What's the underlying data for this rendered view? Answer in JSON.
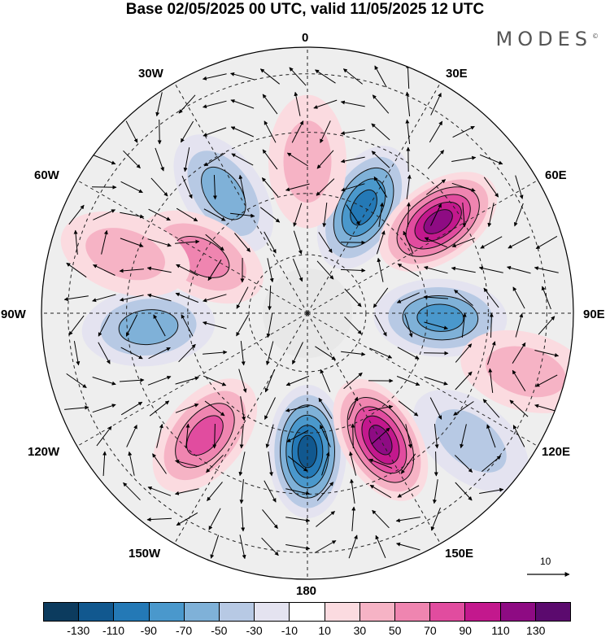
{
  "title": "Base 02/05/2025 00 UTC, valid 11/05/2025 12 UTC",
  "brand": "MODES",
  "brand_mark": "©",
  "longitude_labels": {
    "l0": "0",
    "l30e": "30E",
    "l60e": "60E",
    "l90e": "90E",
    "l120e": "120E",
    "l150e": "150E",
    "l180": "180",
    "l150w": "150W",
    "l120w": "120W",
    "l90w": "90W",
    "l60w": "60W",
    "l30w": "30W"
  },
  "vector_reference": "10",
  "colorbar": {
    "colors": [
      "#0c3b5e",
      "#11588f",
      "#2479b6",
      "#4a98cc",
      "#7fb1d8",
      "#b7c9e4",
      "#e4e3f0",
      "#ffffff",
      "#fbdbe0",
      "#f6b3c5",
      "#ef85b0",
      "#e14c9f",
      "#c3188d",
      "#8e0b83",
      "#5b0a6e"
    ],
    "labels": [
      "-130",
      "-110",
      "-90",
      "-70",
      "-50",
      "-30",
      "-10",
      "10",
      "30",
      "50",
      "70",
      "90",
      "110",
      "130"
    ]
  },
  "map": {
    "projection": "polar stereographic, south pole centred",
    "field": "anomaly (shaded) with wind vectors",
    "anomalies": [
      {
        "name": "blue-0-30e",
        "lon": 28,
        "colat": 0.45,
        "value": -110
      },
      {
        "name": "blue-30w",
        "lon": -35,
        "colat": 0.55,
        "value": -60
      },
      {
        "name": "blue-90e",
        "lon": 92,
        "colat": 0.5,
        "value": -90
      },
      {
        "name": "blue-120e",
        "lon": 128,
        "colat": 0.78,
        "value": -50
      },
      {
        "name": "blue-180",
        "lon": 180,
        "colat": 0.52,
        "value": -130
      },
      {
        "name": "blue-90w",
        "lon": -95,
        "colat": 0.6,
        "value": -70
      },
      {
        "name": "pink-0",
        "lon": 0,
        "colat": 0.57,
        "value": 40
      },
      {
        "name": "pink-60w",
        "lon": -62,
        "colat": 0.45,
        "value": 70
      },
      {
        "name": "pink-75w",
        "lon": -72,
        "colat": 0.72,
        "value": 40
      },
      {
        "name": "pink-55e",
        "lon": 55,
        "colat": 0.6,
        "value": 120
      },
      {
        "name": "pink-105e",
        "lon": 105,
        "colat": 0.85,
        "value": 40
      },
      {
        "name": "pink-150e",
        "lon": 150,
        "colat": 0.55,
        "value": 125
      },
      {
        "name": "pink-140w",
        "lon": -140,
        "colat": 0.6,
        "value": 80
      }
    ]
  }
}
